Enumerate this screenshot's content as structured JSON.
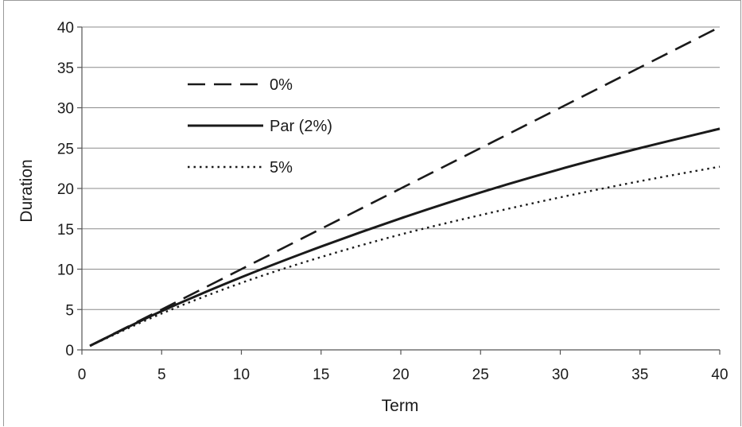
{
  "chart_data": {
    "type": "line",
    "xlabel": "Term",
    "ylabel": "Duration",
    "xlim": [
      0,
      40
    ],
    "ylim": [
      0,
      40
    ],
    "xticks": [
      0,
      5,
      10,
      15,
      20,
      25,
      30,
      35,
      40
    ],
    "yticks": [
      0,
      5,
      10,
      15,
      20,
      25,
      30,
      35,
      40
    ],
    "grid": "horizontal",
    "legend_placement": "top-left",
    "series": [
      {
        "name": "0%",
        "style": "dashed",
        "color": "#1a1a1a",
        "x": [
          0.5,
          5,
          10,
          15,
          20,
          25,
          30,
          35,
          40
        ],
        "y": [
          0.5,
          5,
          10,
          15,
          20,
          25,
          30,
          35,
          40
        ]
      },
      {
        "name": "Par (2%)",
        "style": "solid",
        "color": "#1a1a1a",
        "x": [
          0.5,
          5,
          10,
          15,
          20,
          25,
          30,
          35,
          40
        ],
        "y": [
          0.5,
          4.8,
          9.0,
          12.8,
          16.3,
          19.5,
          22.4,
          25.0,
          27.4
        ]
      },
      {
        "name": "5%",
        "style": "dotted",
        "color": "#1a1a1a",
        "x": [
          0.5,
          5,
          10,
          15,
          20,
          25,
          30,
          35,
          40
        ],
        "y": [
          0.5,
          4.5,
          8.3,
          11.5,
          14.3,
          16.7,
          18.9,
          20.9,
          22.7
        ]
      }
    ]
  }
}
